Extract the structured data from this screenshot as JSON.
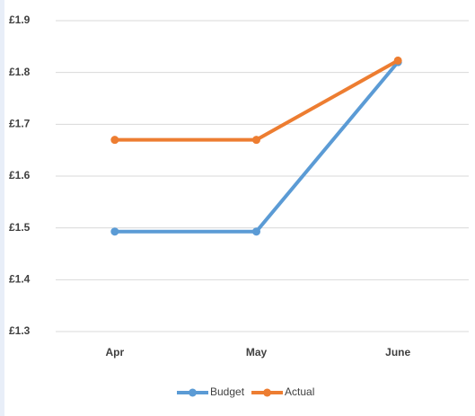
{
  "chart_data": {
    "type": "line",
    "categories": [
      "Apr",
      "May",
      "June"
    ],
    "series": [
      {
        "name": "Budget",
        "color": "#5b9bd5",
        "values": [
          1.493,
          1.493,
          1.82
        ]
      },
      {
        "name": "Actual",
        "color": "#ed7d31",
        "values": [
          1.67,
          1.67,
          1.823
        ]
      }
    ],
    "ylim": [
      1.3,
      1.9
    ],
    "yticks": [
      {
        "value": 1.3,
        "label": "£1.3"
      },
      {
        "value": 1.4,
        "label": "£1.4"
      },
      {
        "value": 1.5,
        "label": "£1.5"
      },
      {
        "value": 1.6,
        "label": "£1.6"
      },
      {
        "value": 1.7,
        "label": "£1.7"
      },
      {
        "value": 1.8,
        "label": "£1.8"
      },
      {
        "value": 1.9,
        "label": "£1.9"
      }
    ],
    "grid": true,
    "legend": "bottom"
  }
}
